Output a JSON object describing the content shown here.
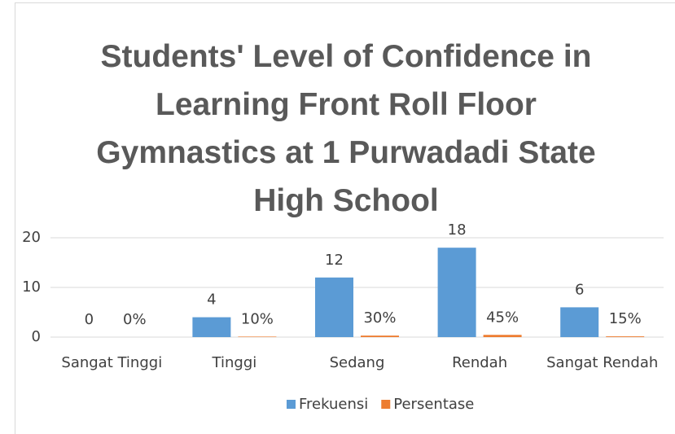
{
  "chart_data": {
    "type": "bar",
    "title": "Students' Level of Confidence in Learning Front Roll Floor Gymnastics at 1 Purwadadi State High School",
    "categories": [
      "Sangat Tinggi",
      "Tinggi",
      "Sedang",
      "Rendah",
      "Sangat Rendah"
    ],
    "series": [
      {
        "name": "Frekuensi",
        "color": "#5b9bd5",
        "values": [
          0,
          4,
          12,
          18,
          6
        ]
      },
      {
        "name": "Persentase",
        "color": "#ed7d31",
        "values": [
          0,
          0.1,
          0.3,
          0.45,
          0.15
        ],
        "value_labels": [
          "0%",
          "10%",
          "30%",
          "45%",
          "15%"
        ]
      }
    ],
    "ylim": [
      0,
      20
    ],
    "yticks": [
      0,
      10,
      20
    ],
    "grid": true,
    "legend": "bottom"
  }
}
